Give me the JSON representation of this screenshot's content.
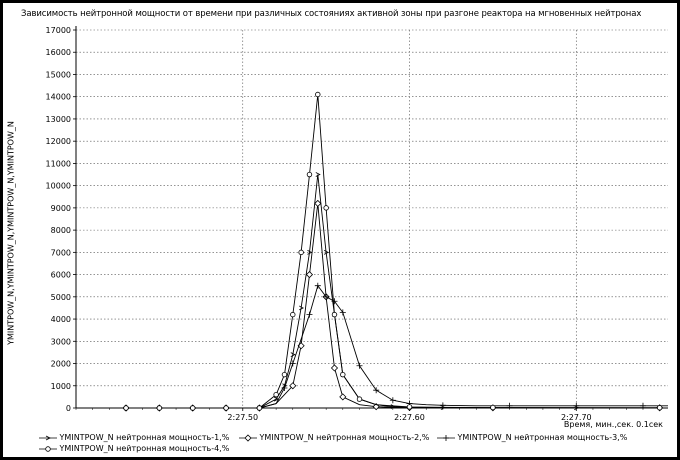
{
  "chart_data": {
    "type": "line",
    "title": "Зависимость нейтронной мощности от времени при различных состояниях активной зоны при разгоне реактора на мгновенных нейтронах",
    "ylabel": "YMINTPOW_N,YMINTPOW_N,YMINTPOW_N,YMINTPOW_N",
    "xlabel": "Время, мин.,сек. 0.1сек",
    "x_ticks": [
      {
        "value": 0.5,
        "label": "2:27.50"
      },
      {
        "value": 0.6,
        "label": "2:27.60"
      },
      {
        "value": 0.7,
        "label": "2:27.70"
      }
    ],
    "xlim": [
      0.4,
      0.755
    ],
    "ylim": [
      0,
      17000
    ],
    "y_ticks": [
      0,
      1000,
      2000,
      3000,
      4000,
      5000,
      6000,
      7000,
      8000,
      9000,
      10000,
      11000,
      12000,
      13000,
      14000,
      15000,
      16000,
      17000
    ],
    "grid": true,
    "legend_position": "bottom",
    "series": [
      {
        "name": "YMINTPOW_N  нейтронная мощность-1,%",
        "marker": "arrow",
        "x": [
          0.43,
          0.44,
          0.45,
          0.46,
          0.47,
          0.48,
          0.49,
          0.5,
          0.51,
          0.52,
          0.525,
          0.53,
          0.535,
          0.54,
          0.545,
          0.55,
          0.555,
          0.56,
          0.57,
          0.58,
          0.59,
          0.6,
          0.62,
          0.65,
          0.7,
          0.75
        ],
        "y": [
          0,
          0,
          0,
          0,
          0,
          0,
          0,
          0,
          0,
          400,
          1000,
          2400,
          4500,
          7000,
          10500,
          7000,
          4200,
          1500,
          400,
          150,
          60,
          30,
          20,
          15,
          10,
          10
        ]
      },
      {
        "name": "YMINTPOW_N  нейтронная мощность-2,%",
        "marker": "diamond",
        "x": [
          0.43,
          0.44,
          0.45,
          0.46,
          0.47,
          0.48,
          0.49,
          0.5,
          0.51,
          0.52,
          0.53,
          0.535,
          0.54,
          0.545,
          0.55,
          0.555,
          0.56,
          0.57,
          0.58,
          0.59,
          0.6,
          0.62,
          0.65,
          0.7,
          0.75
        ],
        "y": [
          0,
          0,
          0,
          0,
          0,
          0,
          0,
          0,
          0,
          200,
          1000,
          2800,
          6000,
          9200,
          5000,
          1800,
          500,
          150,
          60,
          30,
          20,
          15,
          10,
          10,
          10
        ]
      },
      {
        "name": "YMINTPOW_N  нейтронная мощность-3,%",
        "marker": "plus",
        "x": [
          0.43,
          0.44,
          0.45,
          0.46,
          0.47,
          0.48,
          0.49,
          0.5,
          0.51,
          0.52,
          0.525,
          0.53,
          0.54,
          0.545,
          0.55,
          0.555,
          0.56,
          0.57,
          0.58,
          0.59,
          0.6,
          0.61,
          0.62,
          0.64,
          0.66,
          0.68,
          0.7,
          0.72,
          0.74,
          0.755
        ],
        "y": [
          0,
          0,
          0,
          0,
          0,
          0,
          0,
          0,
          0,
          200,
          900,
          2000,
          4200,
          5500,
          5000,
          4800,
          4300,
          1900,
          800,
          350,
          200,
          150,
          120,
          100,
          100,
          100,
          100,
          100,
          100,
          100
        ]
      },
      {
        "name": "YMINTPOW_N  нейтронная мощность-4,%",
        "marker": "circle",
        "x": [
          0.43,
          0.44,
          0.45,
          0.46,
          0.47,
          0.48,
          0.49,
          0.5,
          0.51,
          0.52,
          0.525,
          0.53,
          0.535,
          0.54,
          0.545,
          0.55,
          0.555,
          0.56,
          0.57,
          0.58,
          0.6,
          0.62,
          0.65,
          0.7,
          0.75
        ],
        "y": [
          0,
          0,
          0,
          0,
          0,
          0,
          0,
          0,
          0,
          600,
          1500,
          4200,
          7000,
          10500,
          14100,
          9000,
          4200,
          1500,
          400,
          150,
          50,
          30,
          20,
          15,
          10
        ]
      }
    ]
  }
}
